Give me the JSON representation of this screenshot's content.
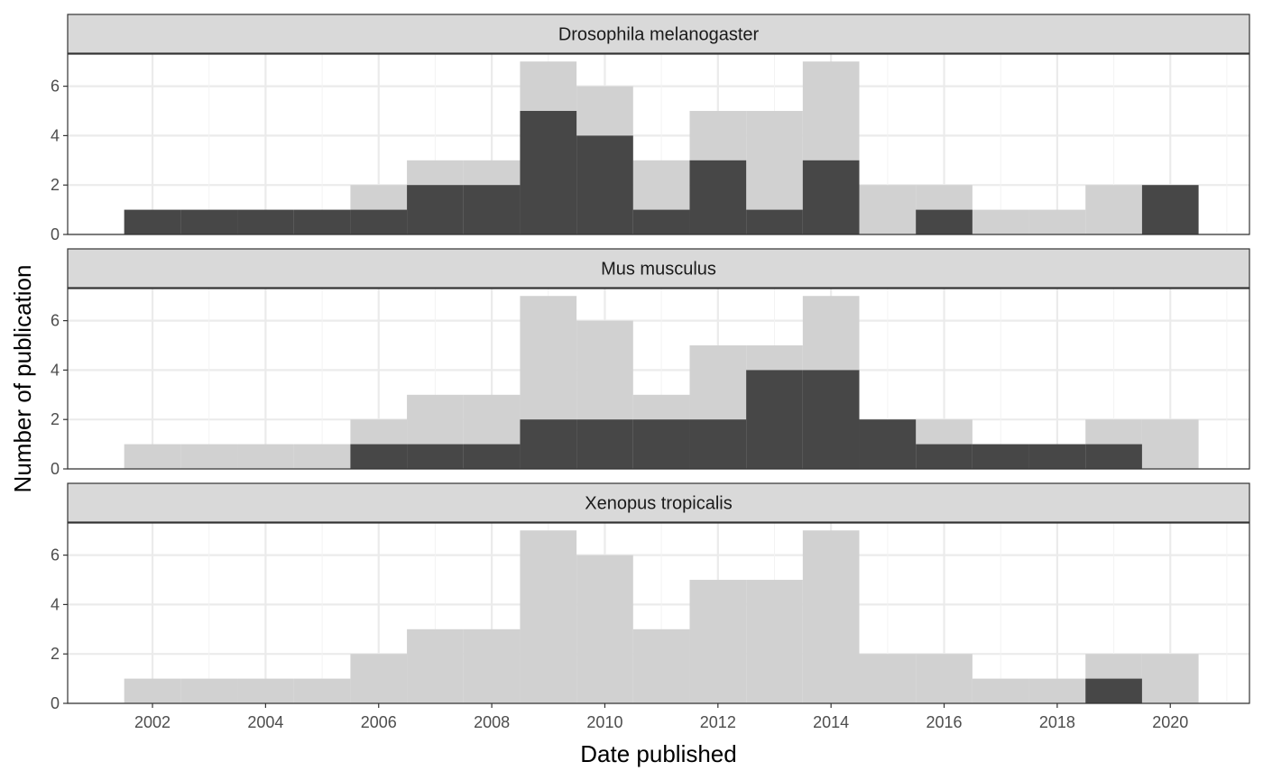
{
  "chart_data": {
    "type": "bar",
    "xlabel": "Date published",
    "ylabel": "Number of publication",
    "xlim": [
      2000.5,
      2021.4
    ],
    "ylim": [
      0,
      7.3
    ],
    "x_ticks": [
      2002,
      2004,
      2006,
      2008,
      2010,
      2012,
      2014,
      2016,
      2018,
      2020
    ],
    "y_ticks": [
      0,
      2,
      4,
      6
    ],
    "grid": true,
    "bin_width": 1,
    "x": [
      2002,
      2003,
      2004,
      2005,
      2006,
      2007,
      2008,
      2009,
      2010,
      2011,
      2012,
      2013,
      2014,
      2015,
      2016,
      2017,
      2018,
      2019,
      2020
    ],
    "total": [
      1,
      1,
      1,
      1,
      2,
      3,
      3,
      7,
      6,
      3,
      5,
      5,
      7,
      2,
      2,
      1,
      1,
      2,
      2
    ],
    "panels": [
      {
        "name": "Drosophila melanogaster",
        "values": [
          1,
          1,
          1,
          1,
          1,
          2,
          2,
          5,
          4,
          1,
          3,
          1,
          3,
          0,
          1,
          0,
          0,
          0,
          2
        ]
      },
      {
        "name": "Mus musculus",
        "values": [
          0,
          0,
          0,
          0,
          1,
          1,
          1,
          2,
          2,
          2,
          2,
          4,
          4,
          2,
          1,
          1,
          1,
          1,
          0
        ]
      },
      {
        "name": "Xenopus tropicalis",
        "values": [
          0,
          0,
          0,
          0,
          0,
          0,
          0,
          0,
          0,
          0,
          0,
          0,
          0,
          0,
          0,
          0,
          0,
          1,
          0
        ]
      }
    ],
    "colors": {
      "background_bars": "#d1d1d1",
      "highlight_bars": "#474747",
      "strip_fill": "#d9d9d9",
      "grid": "#ebebeb",
      "border": "#333333"
    }
  }
}
